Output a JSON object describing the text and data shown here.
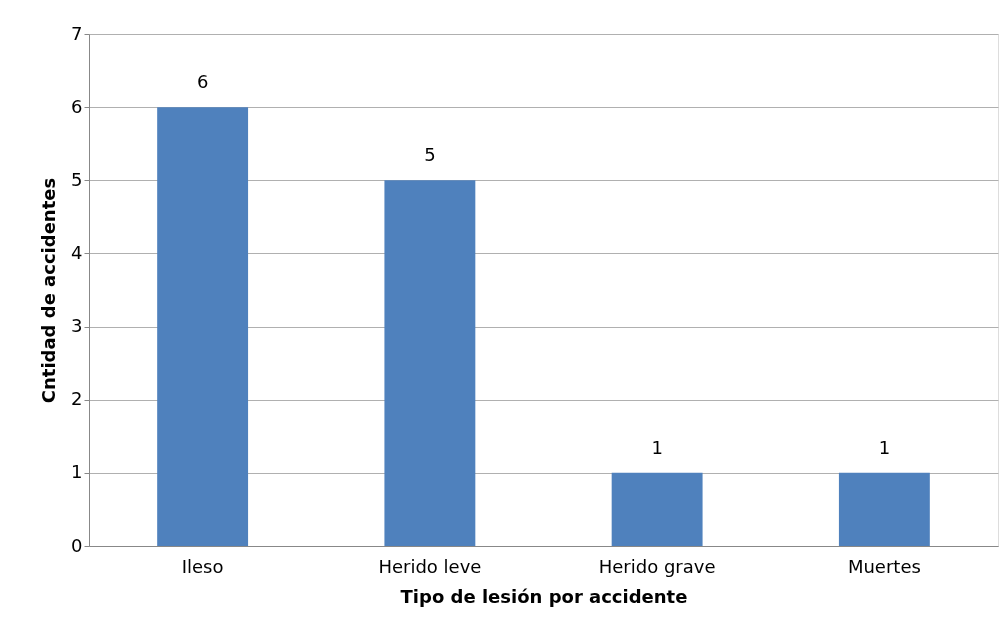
{
  "chart_data": {
    "type": "bar",
    "xlabel": "Tipo de lesión por accidente",
    "ylabel": "Cntidad de accidentes",
    "categories": [
      "Ileso",
      "Herido leve",
      "Herido grave",
      "Muertes"
    ],
    "values": [
      6,
      5,
      1,
      1
    ],
    "color": "#4f81bd",
    "ylim": [
      0,
      7
    ],
    "yticks": [
      0,
      1,
      2,
      3,
      4,
      5,
      6,
      7
    ],
    "grid": "y",
    "data_labels": true
  }
}
